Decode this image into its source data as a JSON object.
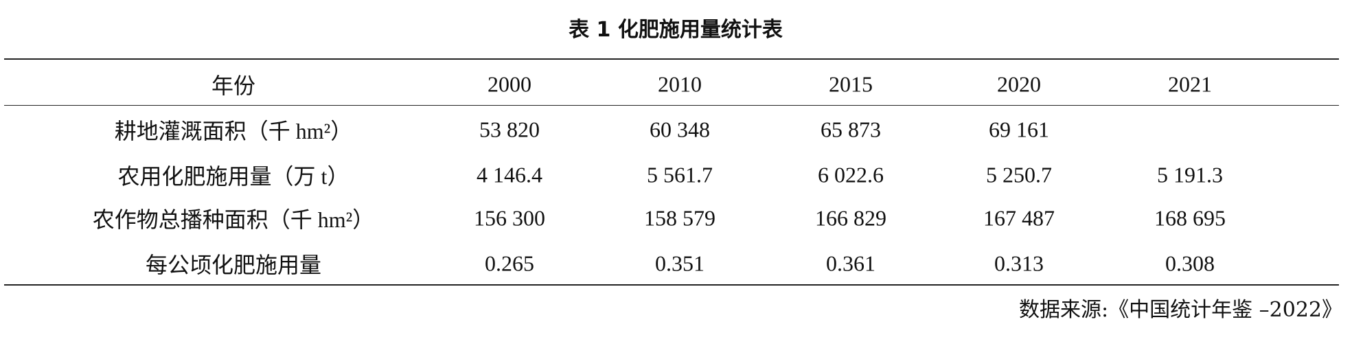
{
  "title": "表 1 化肥施用量统计表",
  "table": {
    "header": [
      "年份",
      "2000",
      "2010",
      "2015",
      "2020",
      "2021"
    ],
    "rows": [
      [
        "耕地灌溉面积（千 hm²）",
        "53 820",
        "60 348",
        "65 873",
        "69 161",
        null
      ],
      [
        "农用化肥施用量（万 t）",
        "4 146.4",
        "5 561.7",
        "6 022.6",
        "5 250.7",
        "5 191.3"
      ],
      [
        "农作物总播种面积（千 hm²）",
        "156 300",
        "158 579",
        "166 829",
        "167 487",
        "168 695"
      ],
      [
        "每公顷化肥施用量",
        "0.265",
        "0.351",
        "0.361",
        "0.313",
        "0.308"
      ]
    ]
  },
  "source": "数据来源:《中国统计年鉴 –2022》"
}
